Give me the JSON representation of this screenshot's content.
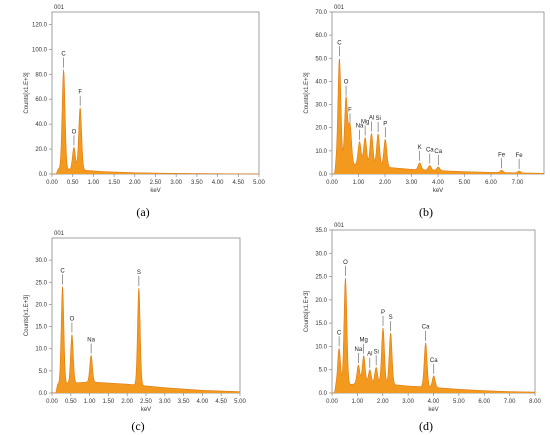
{
  "chart_data": [
    {
      "panel_label": "(a)",
      "type": "area",
      "header": "001",
      "xlabel": "keV",
      "ylabel": "Counts[x1.E+3]",
      "xlim": [
        0.0,
        5.0
      ],
      "ylim": [
        0.0,
        130.0
      ],
      "x_ticks": [
        "0.00",
        "0.50",
        "1.00",
        "1.50",
        "2.00",
        "2.50",
        "3.00",
        "3.50",
        "4.00",
        "4.50",
        "5.00"
      ],
      "y_ticks": [
        "0.0",
        "20.0",
        "40.0",
        "60.0",
        "80.0",
        "100.0",
        "120.0"
      ],
      "peaks": [
        {
          "label": "C",
          "x": 0.28,
          "y": 80
        },
        {
          "label": "O",
          "x": 0.53,
          "y": 18
        },
        {
          "label": "F",
          "x": 0.68,
          "y": 50
        }
      ],
      "bg_points": [
        [
          0.1,
          0
        ],
        [
          0.15,
          4
        ],
        [
          0.8,
          3
        ],
        [
          1.2,
          2
        ],
        [
          2,
          1
        ],
        [
          3,
          0.5
        ],
        [
          5,
          0
        ]
      ]
    },
    {
      "panel_label": "(b)",
      "type": "area",
      "header": "001",
      "xlabel": "keV",
      "ylabel": "Counts[x1.E+3]",
      "xlim": [
        0.0,
        8.0
      ],
      "ylim": [
        0.0,
        70.0
      ],
      "x_ticks": [
        "0.00",
        "1.00",
        "2.00",
        "3.00",
        "4.00",
        "5.00",
        "6.00",
        "7.00"
      ],
      "y_ticks": [
        "0.0",
        "10.0",
        "20.0",
        "30.0",
        "40.0",
        "50.0",
        "60.0",
        "70.0"
      ],
      "peaks": [
        {
          "label": "C",
          "x": 0.28,
          "y": 46
        },
        {
          "label": "O",
          "x": 0.53,
          "y": 29
        },
        {
          "label": "F",
          "x": 0.68,
          "y": 17
        },
        {
          "label": "Na",
          "x": 1.04,
          "y": 10
        },
        {
          "label": "Mg",
          "x": 1.25,
          "y": 12
        },
        {
          "label": "Al",
          "x": 1.49,
          "y": 14
        },
        {
          "label": "Si",
          "x": 1.74,
          "y": 14
        },
        {
          "label": "P",
          "x": 2.01,
          "y": 12
        },
        {
          "label": "K",
          "x": 3.31,
          "y": 3
        },
        {
          "label": "Ca",
          "x": 3.69,
          "y": 2
        },
        {
          "label": "Ca",
          "x": 4.01,
          "y": 1.5
        },
        {
          "label": "Fe",
          "x": 6.4,
          "y": 1
        },
        {
          "label": "Fe",
          "x": 7.06,
          "y": 0.8
        }
      ],
      "bg_points": [
        [
          0.1,
          0
        ],
        [
          0.15,
          4
        ],
        [
          1,
          4
        ],
        [
          2,
          3
        ],
        [
          3,
          2
        ],
        [
          4,
          1.5
        ],
        [
          5,
          1
        ],
        [
          6,
          0.7
        ],
        [
          8,
          0.3
        ]
      ]
    },
    {
      "panel_label": "(c)",
      "type": "area",
      "header": "001",
      "xlabel": "keV",
      "ylabel": "Counts[x1.E+3]",
      "xlim": [
        0.0,
        5.0
      ],
      "ylim": [
        0.0,
        35.0
      ],
      "x_ticks": [
        "0.00",
        "0.50",
        "1.00",
        "1.50",
        "2.00",
        "2.50",
        "3.00",
        "3.50",
        "4.00",
        "4.50",
        "5.00"
      ],
      "y_ticks": [
        "0.0",
        "5.0",
        "10.0",
        "15.0",
        "20.0",
        "25.0",
        "30.0"
      ],
      "peaks": [
        {
          "label": "C",
          "x": 0.28,
          "y": 22
        },
        {
          "label": "O",
          "x": 0.53,
          "y": 11
        },
        {
          "label": "Na",
          "x": 1.04,
          "y": 6
        },
        {
          "label": "S",
          "x": 2.31,
          "y": 22
        }
      ],
      "bg_points": [
        [
          0.1,
          0
        ],
        [
          0.15,
          2
        ],
        [
          1,
          2.5
        ],
        [
          2,
          2
        ],
        [
          3,
          1.2
        ],
        [
          4,
          0.6
        ],
        [
          5,
          0.3
        ]
      ]
    },
    {
      "panel_label": "(d)",
      "type": "area",
      "header": "001",
      "xlabel": "keV",
      "ylabel": "Counts[x1.E+3]",
      "xlim": [
        0.0,
        8.0
      ],
      "ylim": [
        0.0,
        35.0
      ],
      "x_ticks": [
        "0.00",
        "1.00",
        "2.00",
        "3.00",
        "4.00",
        "5.00",
        "6.00",
        "7.00",
        "8.00"
      ],
      "y_ticks": [
        "0.0",
        "5.0",
        "10.0",
        "15.0",
        "20.0",
        "25.0",
        "30.0",
        "35.0"
      ],
      "peaks": [
        {
          "label": "C",
          "x": 0.28,
          "y": 8
        },
        {
          "label": "O",
          "x": 0.53,
          "y": 23
        },
        {
          "label": "Na",
          "x": 1.04,
          "y": 4
        },
        {
          "label": "Mg",
          "x": 1.25,
          "y": 6
        },
        {
          "label": "Al",
          "x": 1.49,
          "y": 3
        },
        {
          "label": "Si",
          "x": 1.74,
          "y": 3.5
        },
        {
          "label": "P",
          "x": 2.01,
          "y": 12
        },
        {
          "label": "S",
          "x": 2.31,
          "y": 11
        },
        {
          "label": "Ca",
          "x": 3.69,
          "y": 9.5
        },
        {
          "label": "Ca",
          "x": 4.01,
          "y": 2.5
        }
      ],
      "bg_points": [
        [
          0.1,
          0
        ],
        [
          0.15,
          1.5
        ],
        [
          1,
          2
        ],
        [
          2,
          2
        ],
        [
          3,
          1.5
        ],
        [
          4,
          1.2
        ],
        [
          5,
          0.8
        ],
        [
          6,
          0.5
        ],
        [
          7,
          0.3
        ],
        [
          8,
          0.2
        ]
      ]
    }
  ],
  "colors": {
    "fill": "#F39A1E",
    "outline": "#E07A10",
    "background": "#FBE9DA",
    "frame": "#8A8A8A",
    "text": "#333333"
  }
}
